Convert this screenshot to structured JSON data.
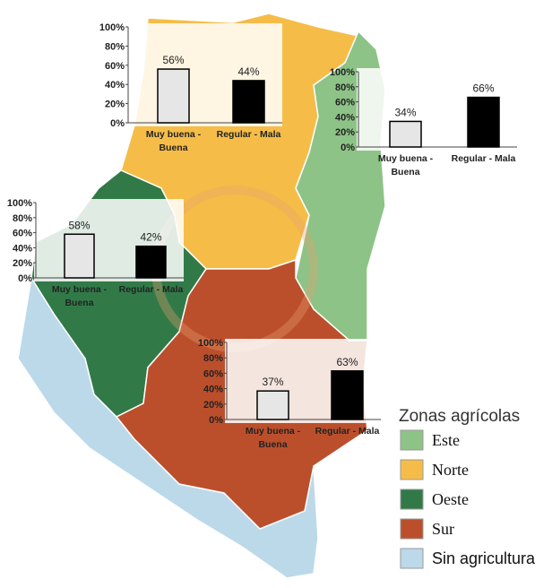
{
  "chart_data": [
    {
      "type": "bar",
      "categories": [
        "Muy buena - Buena",
        "Regular - Mala"
      ],
      "values": [
        56,
        44
      ],
      "value_labels": [
        "56%",
        "44%"
      ],
      "colors": [
        "#e6e6e6",
        "#000000"
      ],
      "ylim": [
        0,
        100
      ],
      "yticks": [
        {
          "value": 0,
          "label": "0%"
        },
        {
          "value": 20,
          "label": "20%"
        },
        {
          "value": 40,
          "label": "40%"
        },
        {
          "value": 60,
          "label": "60%"
        },
        {
          "value": 80,
          "label": "80%"
        },
        {
          "value": 100,
          "label": "100%"
        }
      ]
    },
    {
      "type": "bar",
      "categories": [
        "Muy buena - Buena",
        "Regular - Mala"
      ],
      "values": [
        34,
        66
      ],
      "value_labels": [
        "34%",
        "66%"
      ],
      "colors": [
        "#e6e6e6",
        "#000000"
      ],
      "ylim": [
        0,
        100
      ],
      "yticks": [
        {
          "value": 0,
          "label": "0%"
        },
        {
          "value": 20,
          "label": "20%"
        },
        {
          "value": 40,
          "label": "40%"
        },
        {
          "value": 60,
          "label": "60%"
        },
        {
          "value": 80,
          "label": "80%"
        },
        {
          "value": 100,
          "label": "100%"
        }
      ]
    },
    {
      "type": "bar",
      "categories": [
        "Muy buena - Buena",
        "Regular - Mala"
      ],
      "values": [
        58,
        42
      ],
      "value_labels": [
        "58%",
        "42%"
      ],
      "colors": [
        "#e6e6e6",
        "#000000"
      ],
      "ylim": [
        0,
        100
      ],
      "yticks": [
        {
          "value": 0,
          "label": "0%"
        },
        {
          "value": 20,
          "label": "20%"
        },
        {
          "value": 40,
          "label": "40%"
        },
        {
          "value": 60,
          "label": "60%"
        },
        {
          "value": 80,
          "label": "80%"
        },
        {
          "value": 100,
          "label": "100%"
        }
      ]
    },
    {
      "type": "bar",
      "categories": [
        "Muy buena - Buena",
        "Regular - Mala"
      ],
      "values": [
        37,
        63
      ],
      "value_labels": [
        "37%",
        "63%"
      ],
      "colors": [
        "#e6e6e6",
        "#000000"
      ],
      "ylim": [
        0,
        100
      ],
      "yticks": [
        {
          "value": 0,
          "label": "0%"
        },
        {
          "value": 20,
          "label": "20%"
        },
        {
          "value": 40,
          "label": "40%"
        },
        {
          "value": 60,
          "label": "60%"
        },
        {
          "value": 80,
          "label": "80%"
        },
        {
          "value": 100,
          "label": "100%"
        }
      ]
    }
  ],
  "legend": {
    "title": "Zonas agrícolas",
    "items": [
      {
        "label": "Este",
        "color": "#8dc386"
      },
      {
        "label": "Norte",
        "color": "#f5bd48"
      },
      {
        "label": "Oeste",
        "color": "#317a48"
      },
      {
        "label": "Sur",
        "color": "#bb4f2c"
      },
      {
        "label": "Sin agricultura",
        "color": "#bcd9ea"
      }
    ]
  }
}
